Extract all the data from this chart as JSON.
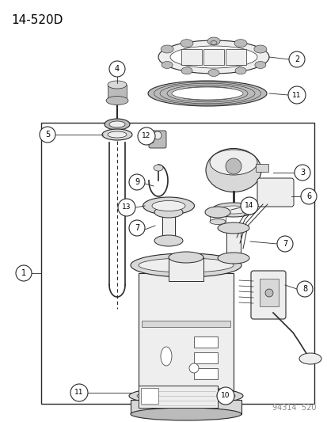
{
  "title": "14-520D",
  "bg_color": "#ffffff",
  "line_color": "#2a2a2a",
  "gray_fill": "#d8d8d8",
  "light_gray": "#eeeeee",
  "med_gray": "#bbbbbb",
  "footer_text": "94314  520",
  "fig_width": 4.14,
  "fig_height": 5.33,
  "dpi": 100
}
